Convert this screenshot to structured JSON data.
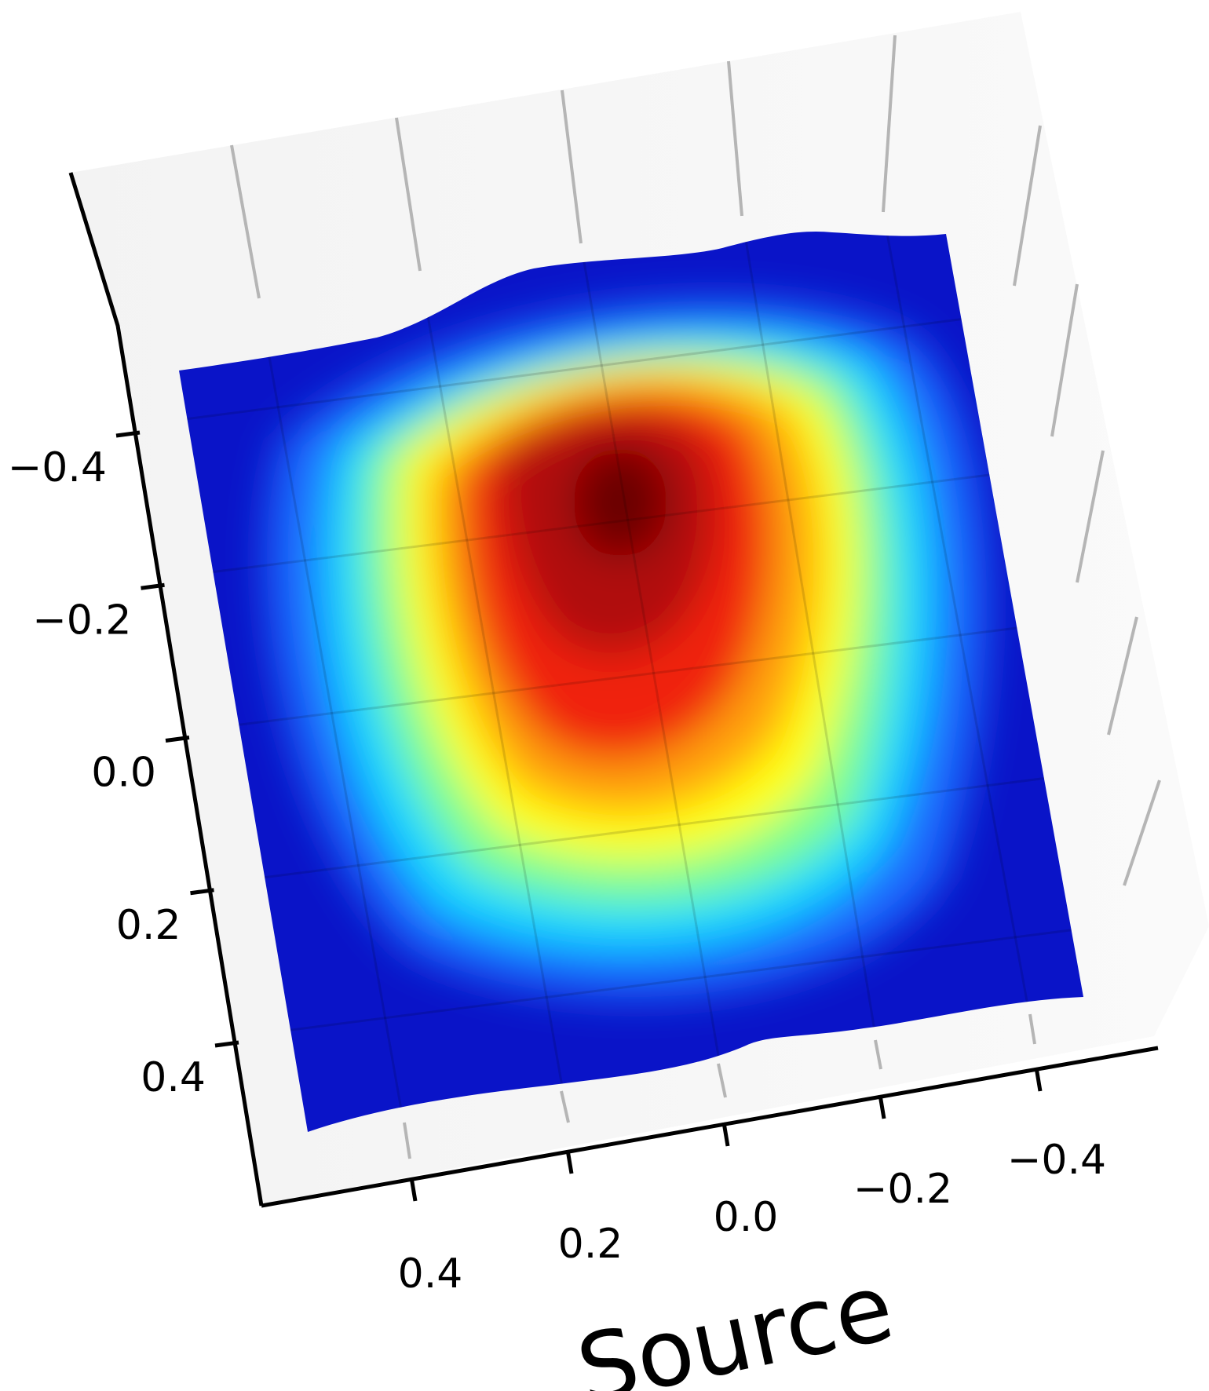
{
  "chart_data": {
    "type": "surface",
    "xlabel": "Source",
    "ylabel": "",
    "zlabel": "",
    "x_ticks": [
      "0.4",
      "0.2",
      "0.0",
      "−0.2",
      "−0.4"
    ],
    "y_ticks": [
      "−0.4",
      "−0.2",
      "0.0",
      "0.2",
      "0.4"
    ],
    "x_range": [
      -0.5,
      0.5
    ],
    "y_range": [
      -0.5,
      0.5
    ],
    "grid": true,
    "colormap": "jet",
    "colormap_stops": [
      "#00007f",
      "#0000ff",
      "#007fff",
      "#00ffff",
      "#7fff7f",
      "#ffff00",
      "#ff7f00",
      "#ff0000",
      "#7f0000"
    ],
    "surface_shape": "single broad peak, highest near x=0.1, y=-0.3, falling off to the edges",
    "peak": {
      "x": 0.1,
      "y": -0.3
    },
    "pane_color": "#f2f2f2",
    "grid_color": "#b0b0b0"
  }
}
